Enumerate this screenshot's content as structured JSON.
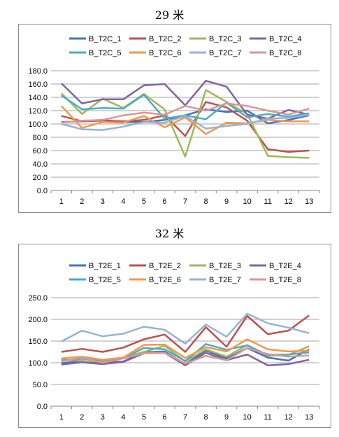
{
  "chart_data": [
    {
      "type": "line",
      "title": "29 米",
      "xlabel": "",
      "ylabel": "",
      "categories": [
        "1",
        "2",
        "3",
        "4",
        "5",
        "6",
        "7",
        "8",
        "9",
        "10",
        "11",
        "12",
        "13"
      ],
      "ylim": [
        0,
        180
      ],
      "yticks": [
        "0.0",
        "20.0",
        "40.0",
        "60.0",
        "80.0",
        "100.0",
        "120.0",
        "140.0",
        "160.0",
        "180.0"
      ],
      "grid": true,
      "legend": "top",
      "series": [
        {
          "name": "B_T2C_1",
          "color": "#4472C4",
          "values": [
            103,
            104,
            106,
            103,
            103,
            106,
            113,
            122,
            118,
            120,
            101,
            106,
            113
          ]
        },
        {
          "name": "B_T2C_2",
          "color": "#C0504D",
          "values": [
            112,
            104,
            105,
            104,
            106,
            113,
            82,
            133,
            125,
            105,
            62,
            58,
            60
          ]
        },
        {
          "name": "B_T2C_3",
          "color": "#9BBB59",
          "values": [
            146,
            115,
            138,
            124,
            145,
            122,
            51,
            151,
            133,
            115,
            52,
            50,
            49
          ]
        },
        {
          "name": "B_T2C_4",
          "color": "#8064A2",
          "values": [
            161,
            131,
            137,
            137,
            158,
            160,
            128,
            165,
            156,
            114,
            108,
            121,
            114
          ]
        },
        {
          "name": "B_T2C_5",
          "color": "#4BACC6",
          "values": [
            143,
            122,
            124,
            123,
            144,
            108,
            113,
            107,
            132,
            110,
            115,
            111,
            116
          ]
        },
        {
          "name": "B_T2C_6",
          "color": "#F79646",
          "values": [
            127,
            94,
            103,
            102,
            112,
            95,
            110,
            85,
            102,
            101,
            106,
            104,
            104
          ]
        },
        {
          "name": "B_T2C_7",
          "color": "#95B3D7",
          "values": [
            100,
            92,
            91,
            96,
            103,
            102,
            112,
            93,
            97,
            100,
            108,
            109,
            114
          ]
        },
        {
          "name": "B_T2C_8",
          "color": "#DA9694",
          "values": [
            102,
            105,
            106,
            113,
            117,
            114,
            127,
            120,
            131,
            127,
            120,
            114,
            123
          ]
        }
      ]
    },
    {
      "type": "line",
      "title": "32 米",
      "xlabel": "",
      "ylabel": "",
      "categories": [
        "1",
        "2",
        "3",
        "4",
        "5",
        "6",
        "7",
        "8",
        "9",
        "10",
        "11",
        "12",
        "13"
      ],
      "ylim": [
        0,
        250
      ],
      "yticks": [
        "0.0",
        "50.0",
        "100.0",
        "150.0",
        "200.0",
        "250.0"
      ],
      "grid": true,
      "legend": "top",
      "series": [
        {
          "name": "B_T2E_1",
          "color": "#4472C4",
          "values": [
            99,
            104,
            101,
            103,
            124,
            126,
            97,
            128,
            110,
            134,
            112,
            105,
            131
          ]
        },
        {
          "name": "B_T2E_2",
          "color": "#C0504D",
          "values": [
            125,
            132,
            125,
            135,
            154,
            165,
            125,
            182,
            137,
            208,
            166,
            174,
            209
          ]
        },
        {
          "name": "B_T2E_3",
          "color": "#9BBB59",
          "values": [
            108,
            104,
            103,
            112,
            125,
            139,
            103,
            131,
            114,
            141,
            116,
            118,
            138
          ]
        },
        {
          "name": "B_T2E_4",
          "color": "#8064A2",
          "values": [
            96,
            101,
            97,
            102,
            122,
            123,
            94,
            123,
            106,
            119,
            94,
            97,
            107
          ]
        },
        {
          "name": "B_T2E_5",
          "color": "#4BACC6",
          "values": [
            105,
            109,
            106,
            110,
            134,
            131,
            104,
            143,
            130,
            140,
            118,
            119,
            124
          ]
        },
        {
          "name": "B_T2E_6",
          "color": "#F79646",
          "values": [
            110,
            114,
            107,
            112,
            141,
            142,
            111,
            136,
            126,
            154,
            131,
            126,
            128
          ]
        },
        {
          "name": "B_T2E_7",
          "color": "#95B3D7",
          "values": [
            149,
            174,
            161,
            167,
            183,
            176,
            144,
            188,
            160,
            213,
            191,
            181,
            168
          ]
        },
        {
          "name": "B_T2E_8",
          "color": "#DA9694",
          "values": [
            103,
            112,
            100,
            110,
            122,
            123,
            98,
            116,
            106,
            134,
            120,
            114,
            117
          ]
        }
      ]
    }
  ]
}
